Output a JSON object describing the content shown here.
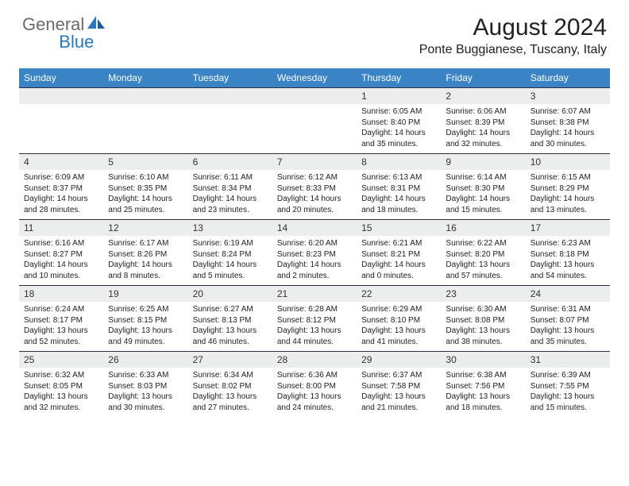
{
  "brand": {
    "part1": "General",
    "part2": "Blue"
  },
  "title": "August 2024",
  "location": "Ponte Buggianese, Tuscany, Italy",
  "colors": {
    "header_bg": "#3a84c5",
    "header_text": "#ffffff",
    "daynum_bg": "#eceded",
    "border": "#2c2c44",
    "brand_gray": "#6b6b6b",
    "brand_blue": "#2b78bd",
    "text": "#222222",
    "background": "#ffffff"
  },
  "typography": {
    "title_fontsize": 30,
    "location_fontsize": 16,
    "dayhead_fontsize": 12,
    "daynum_fontsize": 12,
    "info_fontsize": 10
  },
  "weekdays": [
    "Sunday",
    "Monday",
    "Tuesday",
    "Wednesday",
    "Thursday",
    "Friday",
    "Saturday"
  ],
  "weeks": [
    {
      "nums": [
        "",
        "",
        "",
        "",
        "1",
        "2",
        "3"
      ],
      "info": [
        null,
        null,
        null,
        null,
        {
          "sunrise": "Sunrise: 6:05 AM",
          "sunset": "Sunset: 8:40 PM",
          "day1": "Daylight: 14 hours",
          "day2": "and 35 minutes."
        },
        {
          "sunrise": "Sunrise: 6:06 AM",
          "sunset": "Sunset: 8:39 PM",
          "day1": "Daylight: 14 hours",
          "day2": "and 32 minutes."
        },
        {
          "sunrise": "Sunrise: 6:07 AM",
          "sunset": "Sunset: 8:38 PM",
          "day1": "Daylight: 14 hours",
          "day2": "and 30 minutes."
        }
      ]
    },
    {
      "nums": [
        "4",
        "5",
        "6",
        "7",
        "8",
        "9",
        "10"
      ],
      "info": [
        {
          "sunrise": "Sunrise: 6:09 AM",
          "sunset": "Sunset: 8:37 PM",
          "day1": "Daylight: 14 hours",
          "day2": "and 28 minutes."
        },
        {
          "sunrise": "Sunrise: 6:10 AM",
          "sunset": "Sunset: 8:35 PM",
          "day1": "Daylight: 14 hours",
          "day2": "and 25 minutes."
        },
        {
          "sunrise": "Sunrise: 6:11 AM",
          "sunset": "Sunset: 8:34 PM",
          "day1": "Daylight: 14 hours",
          "day2": "and 23 minutes."
        },
        {
          "sunrise": "Sunrise: 6:12 AM",
          "sunset": "Sunset: 8:33 PM",
          "day1": "Daylight: 14 hours",
          "day2": "and 20 minutes."
        },
        {
          "sunrise": "Sunrise: 6:13 AM",
          "sunset": "Sunset: 8:31 PM",
          "day1": "Daylight: 14 hours",
          "day2": "and 18 minutes."
        },
        {
          "sunrise": "Sunrise: 6:14 AM",
          "sunset": "Sunset: 8:30 PM",
          "day1": "Daylight: 14 hours",
          "day2": "and 15 minutes."
        },
        {
          "sunrise": "Sunrise: 6:15 AM",
          "sunset": "Sunset: 8:29 PM",
          "day1": "Daylight: 14 hours",
          "day2": "and 13 minutes."
        }
      ]
    },
    {
      "nums": [
        "11",
        "12",
        "13",
        "14",
        "15",
        "16",
        "17"
      ],
      "info": [
        {
          "sunrise": "Sunrise: 6:16 AM",
          "sunset": "Sunset: 8:27 PM",
          "day1": "Daylight: 14 hours",
          "day2": "and 10 minutes."
        },
        {
          "sunrise": "Sunrise: 6:17 AM",
          "sunset": "Sunset: 8:26 PM",
          "day1": "Daylight: 14 hours",
          "day2": "and 8 minutes."
        },
        {
          "sunrise": "Sunrise: 6:19 AM",
          "sunset": "Sunset: 8:24 PM",
          "day1": "Daylight: 14 hours",
          "day2": "and 5 minutes."
        },
        {
          "sunrise": "Sunrise: 6:20 AM",
          "sunset": "Sunset: 8:23 PM",
          "day1": "Daylight: 14 hours",
          "day2": "and 2 minutes."
        },
        {
          "sunrise": "Sunrise: 6:21 AM",
          "sunset": "Sunset: 8:21 PM",
          "day1": "Daylight: 14 hours",
          "day2": "and 0 minutes."
        },
        {
          "sunrise": "Sunrise: 6:22 AM",
          "sunset": "Sunset: 8:20 PM",
          "day1": "Daylight: 13 hours",
          "day2": "and 57 minutes."
        },
        {
          "sunrise": "Sunrise: 6:23 AM",
          "sunset": "Sunset: 8:18 PM",
          "day1": "Daylight: 13 hours",
          "day2": "and 54 minutes."
        }
      ]
    },
    {
      "nums": [
        "18",
        "19",
        "20",
        "21",
        "22",
        "23",
        "24"
      ],
      "info": [
        {
          "sunrise": "Sunrise: 6:24 AM",
          "sunset": "Sunset: 8:17 PM",
          "day1": "Daylight: 13 hours",
          "day2": "and 52 minutes."
        },
        {
          "sunrise": "Sunrise: 6:25 AM",
          "sunset": "Sunset: 8:15 PM",
          "day1": "Daylight: 13 hours",
          "day2": "and 49 minutes."
        },
        {
          "sunrise": "Sunrise: 6:27 AM",
          "sunset": "Sunset: 8:13 PM",
          "day1": "Daylight: 13 hours",
          "day2": "and 46 minutes."
        },
        {
          "sunrise": "Sunrise: 6:28 AM",
          "sunset": "Sunset: 8:12 PM",
          "day1": "Daylight: 13 hours",
          "day2": "and 44 minutes."
        },
        {
          "sunrise": "Sunrise: 6:29 AM",
          "sunset": "Sunset: 8:10 PM",
          "day1": "Daylight: 13 hours",
          "day2": "and 41 minutes."
        },
        {
          "sunrise": "Sunrise: 6:30 AM",
          "sunset": "Sunset: 8:08 PM",
          "day1": "Daylight: 13 hours",
          "day2": "and 38 minutes."
        },
        {
          "sunrise": "Sunrise: 6:31 AM",
          "sunset": "Sunset: 8:07 PM",
          "day1": "Daylight: 13 hours",
          "day2": "and 35 minutes."
        }
      ]
    },
    {
      "nums": [
        "25",
        "26",
        "27",
        "28",
        "29",
        "30",
        "31"
      ],
      "info": [
        {
          "sunrise": "Sunrise: 6:32 AM",
          "sunset": "Sunset: 8:05 PM",
          "day1": "Daylight: 13 hours",
          "day2": "and 32 minutes."
        },
        {
          "sunrise": "Sunrise: 6:33 AM",
          "sunset": "Sunset: 8:03 PM",
          "day1": "Daylight: 13 hours",
          "day2": "and 30 minutes."
        },
        {
          "sunrise": "Sunrise: 6:34 AM",
          "sunset": "Sunset: 8:02 PM",
          "day1": "Daylight: 13 hours",
          "day2": "and 27 minutes."
        },
        {
          "sunrise": "Sunrise: 6:36 AM",
          "sunset": "Sunset: 8:00 PM",
          "day1": "Daylight: 13 hours",
          "day2": "and 24 minutes."
        },
        {
          "sunrise": "Sunrise: 6:37 AM",
          "sunset": "Sunset: 7:58 PM",
          "day1": "Daylight: 13 hours",
          "day2": "and 21 minutes."
        },
        {
          "sunrise": "Sunrise: 6:38 AM",
          "sunset": "Sunset: 7:56 PM",
          "day1": "Daylight: 13 hours",
          "day2": "and 18 minutes."
        },
        {
          "sunrise": "Sunrise: 6:39 AM",
          "sunset": "Sunset: 7:55 PM",
          "day1": "Daylight: 13 hours",
          "day2": "and 15 minutes."
        }
      ]
    }
  ]
}
